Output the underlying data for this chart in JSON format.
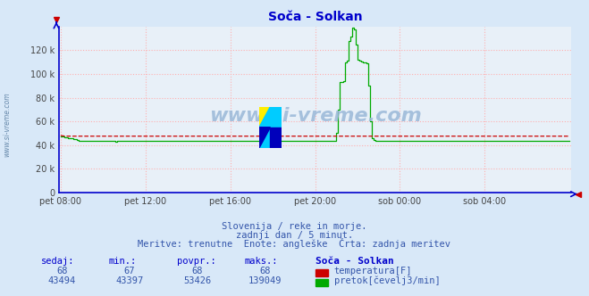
{
  "title": "Soča - Solkan",
  "bg_color": "#d8e8f8",
  "plot_bg_color": "#e8f0f8",
  "grid_color": "#ffb0b0",
  "title_color": "#0000cc",
  "axis_color": "#0000cc",
  "watermark_color": "#9ab8d8",
  "subtitle_lines": [
    "Slovenija / reke in morje.",
    "zadnji dan / 5 minut.",
    "Meritve: trenutne  Enote: angleške  Črta: zadnja meritev"
  ],
  "xlabel_ticks": [
    "pet 08:00",
    "pet 12:00",
    "pet 16:00",
    "pet 20:00",
    "sob 00:00",
    "sob 04:00"
  ],
  "xlabel_tick_positions": [
    0,
    48,
    96,
    144,
    192,
    240
  ],
  "total_points": 289,
  "ylim": [
    0,
    140000
  ],
  "yticks": [
    0,
    20000,
    40000,
    60000,
    80000,
    100000,
    120000
  ],
  "ytick_labels": [
    "0",
    "20 k",
    "40 k",
    "60 k",
    "80 k",
    "100 k",
    "120 k"
  ],
  "temp_color": "#cc0000",
  "flow_color": "#00aa00",
  "temp_value": 68,
  "temp_min": 67,
  "temp_max": 68,
  "temp_avg": 68,
  "flow_sedaj": 43494,
  "flow_min": 43397,
  "flow_avg": 53426,
  "flow_max": 139049,
  "table_header": [
    "sedaj:",
    "min.:",
    "povpr.:",
    "maks.:",
    "Soča - Solkan"
  ],
  "table_color": "#0000cc",
  "watermark_text": "www.si-vreme.com",
  "logo_colors": [
    "#ffee00",
    "#00ccff",
    "#0000cc",
    "#00ccff"
  ],
  "arrow_color": "#cc0000"
}
